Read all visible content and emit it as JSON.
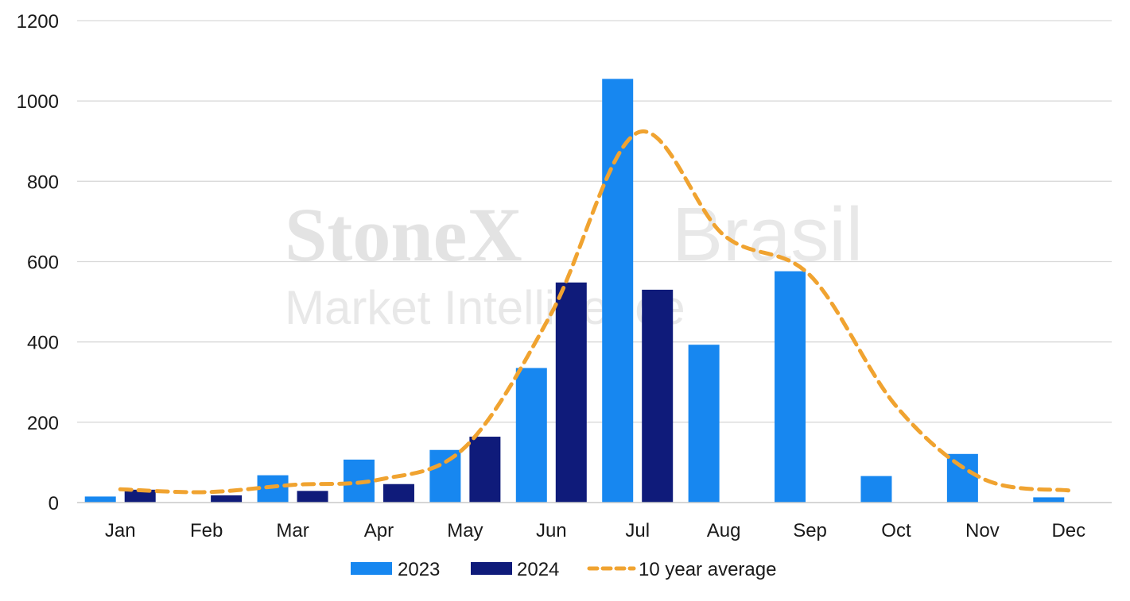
{
  "watermark": {
    "brand": "StoneX",
    "suffix": "Brasil",
    "subtitle": "Market Intelligence"
  },
  "chart_data": {
    "type": "bar",
    "categories": [
      "Jan",
      "Feb",
      "Mar",
      "Apr",
      "May",
      "Jun",
      "Jul",
      "Aug",
      "Sep",
      "Oct",
      "Nov",
      "Dec"
    ],
    "series": [
      {
        "name": "2023",
        "type": "bar",
        "color": "#1787F0",
        "values": [
          15,
          0,
          68,
          107,
          131,
          335,
          1055,
          393,
          576,
          66,
          121,
          13
        ]
      },
      {
        "name": "2024",
        "type": "bar",
        "color": "#0F1B7A",
        "values": [
          32,
          18,
          29,
          46,
          164,
          548,
          530,
          null,
          null,
          null,
          null,
          null
        ]
      },
      {
        "name": "10 year average",
        "type": "line",
        "style": "dashed",
        "color": "#F0A330",
        "values": [
          33,
          26,
          44,
          57,
          138,
          471,
          921,
          666,
          566,
          240,
          60,
          30
        ]
      }
    ],
    "ylim": [
      0,
      1200
    ],
    "yticks": [
      0,
      200,
      400,
      600,
      800,
      1000,
      1200
    ],
    "grid": true,
    "legend_position": "bottom",
    "title": "",
    "xlabel": "",
    "ylabel": ""
  }
}
